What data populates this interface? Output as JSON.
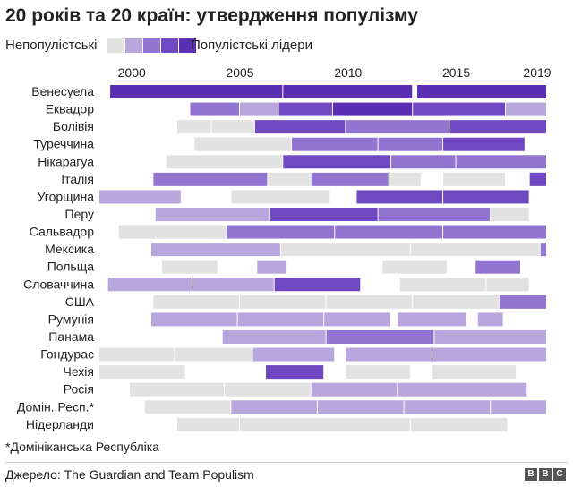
{
  "title": "20 років та 20 країн: утвердження популізму",
  "legend": {
    "left_label": "Непопулістські",
    "right_label": "Популістські лідери",
    "swatches": [
      "#e2e2e2",
      "#b9a6dc",
      "#9175d0",
      "#6f48c2",
      "#5a2fb4"
    ]
  },
  "footnote": "*Домініканська Республіка",
  "source": "Джерело: The Guardian and Team Populism",
  "logo": {
    "letters": [
      "B",
      "B",
      "C"
    ]
  },
  "chart_data": {
    "type": "timeline",
    "x_ticks": [
      2000,
      2005,
      2010,
      2015,
      2019
    ],
    "x_range": [
      1998.5,
      2019.2
    ],
    "levels": {
      "0": "#e2e2e2",
      "1": "#b9a6dc",
      "2": "#9175d0",
      "3": "#6f48c2",
      "4": "#5a2fb4"
    },
    "countries": [
      {
        "name": "Венесуела",
        "segments": [
          [
            1999.0,
            2007.0,
            4
          ],
          [
            2007.0,
            2013.0,
            4
          ],
          [
            2013.2,
            2019.2,
            4
          ]
        ]
      },
      {
        "name": "Еквадор",
        "segments": [
          [
            2002.7,
            2005.0,
            2
          ],
          [
            2005.0,
            2006.8,
            1
          ],
          [
            2006.8,
            2009.3,
            3
          ],
          [
            2009.3,
            2013.0,
            4
          ],
          [
            2013.0,
            2017.3,
            3
          ],
          [
            2017.3,
            2019.2,
            1
          ]
        ]
      },
      {
        "name": "Болівія",
        "segments": [
          [
            2002.1,
            2003.7,
            0
          ],
          [
            2003.7,
            2005.7,
            0
          ],
          [
            2005.7,
            2009.9,
            3
          ],
          [
            2009.9,
            2014.7,
            2
          ],
          [
            2014.7,
            2019.2,
            3
          ]
        ]
      },
      {
        "name": "Туреччина",
        "segments": [
          [
            2002.9,
            2007.4,
            0
          ],
          [
            2007.4,
            2011.4,
            2
          ],
          [
            2011.4,
            2014.4,
            2
          ],
          [
            2014.4,
            2018.2,
            3
          ]
        ]
      },
      {
        "name": "Нікарагуа",
        "segments": [
          [
            2001.6,
            2007.0,
            0
          ],
          [
            2007.0,
            2012.0,
            3
          ],
          [
            2012.0,
            2015.0,
            2
          ],
          [
            2015.0,
            2019.2,
            2
          ]
        ]
      },
      {
        "name": "Італія",
        "segments": [
          [
            2001.0,
            2006.3,
            2
          ],
          [
            2006.3,
            2008.3,
            0
          ],
          [
            2008.3,
            2011.9,
            2
          ],
          [
            2011.9,
            2013.4,
            0
          ],
          [
            2013.4,
            2013.4,
            0
          ],
          [
            2014.4,
            2017.3,
            0
          ],
          [
            2018.4,
            2019.2,
            3
          ]
        ]
      },
      {
        "name": "Угорщина",
        "segments": [
          [
            1998.5,
            2002.3,
            1
          ],
          [
            2004.6,
            2009.2,
            0
          ],
          [
            2010.4,
            2014.4,
            3
          ],
          [
            2014.4,
            2018.4,
            3
          ]
        ]
      },
      {
        "name": "Перу",
        "segments": [
          [
            2001.1,
            2006.4,
            1
          ],
          [
            2006.4,
            2011.4,
            3
          ],
          [
            2011.4,
            2016.6,
            2
          ],
          [
            2016.6,
            2018.4,
            0
          ]
        ]
      },
      {
        "name": "Сальвадор",
        "segments": [
          [
            1999.4,
            2004.4,
            0
          ],
          [
            2004.4,
            2009.4,
            2
          ],
          [
            2009.4,
            2014.4,
            2
          ],
          [
            2014.4,
            2019.2,
            2
          ]
        ]
      },
      {
        "name": "Мексика",
        "segments": [
          [
            2000.9,
            2006.9,
            1
          ],
          [
            2006.9,
            2012.9,
            0
          ],
          [
            2012.9,
            2018.9,
            0
          ],
          [
            2018.9,
            2019.2,
            2
          ]
        ]
      },
      {
        "name": "Польща",
        "segments": [
          [
            2001.4,
            2004.0,
            0
          ],
          [
            2005.8,
            2007.2,
            1
          ],
          [
            2011.6,
            2014.6,
            0
          ],
          [
            2015.9,
            2018.0,
            2
          ]
        ]
      },
      {
        "name": "Словаччина",
        "segments": [
          [
            1998.9,
            2002.8,
            1
          ],
          [
            2002.8,
            2006.6,
            1
          ],
          [
            2006.6,
            2010.6,
            3
          ],
          [
            2012.4,
            2016.4,
            0
          ],
          [
            2016.4,
            2018.4,
            0
          ]
        ]
      },
      {
        "name": "США",
        "segments": [
          [
            2001.0,
            2005.0,
            0
          ],
          [
            2005.0,
            2009.0,
            0
          ],
          [
            2009.0,
            2013.0,
            0
          ],
          [
            2013.0,
            2017.0,
            0
          ],
          [
            2017.0,
            2019.2,
            2
          ]
        ]
      },
      {
        "name": "Румунія",
        "segments": [
          [
            2000.9,
            2004.9,
            1
          ],
          [
            2004.9,
            2008.9,
            1
          ],
          [
            2008.9,
            2012.0,
            1
          ],
          [
            2012.3,
            2015.5,
            1
          ],
          [
            2016.0,
            2017.2,
            1
          ]
        ]
      },
      {
        "name": "Панама",
        "segments": [
          [
            2004.2,
            2009.0,
            1
          ],
          [
            2009.0,
            2014.0,
            2
          ],
          [
            2014.0,
            2019.2,
            1
          ]
        ]
      },
      {
        "name": "Гондурас",
        "segments": [
          [
            1998.5,
            2002.0,
            0
          ],
          [
            2002.0,
            2005.6,
            0
          ],
          [
            2005.6,
            2009.4,
            1
          ],
          [
            2009.9,
            2013.9,
            1
          ],
          [
            2013.9,
            2019.2,
            1
          ]
        ]
      },
      {
        "name": "Чехія",
        "segments": [
          [
            1998.5,
            2002.5,
            0
          ],
          [
            2006.2,
            2008.9,
            3
          ],
          [
            2009.9,
            2012.9,
            0
          ],
          [
            2013.9,
            2017.8,
            0
          ]
        ]
      },
      {
        "name": "Росія",
        "segments": [
          [
            1999.9,
            2004.3,
            0
          ],
          [
            2004.3,
            2008.3,
            0
          ],
          [
            2008.3,
            2012.3,
            1
          ],
          [
            2012.3,
            2018.3,
            1
          ]
        ]
      },
      {
        "name": "Домін. Респ.*",
        "segments": [
          [
            2000.6,
            2004.6,
            0
          ],
          [
            2004.6,
            2008.6,
            1
          ],
          [
            2008.6,
            2012.6,
            1
          ],
          [
            2012.6,
            2016.6,
            1
          ],
          [
            2016.6,
            2019.2,
            1
          ]
        ]
      },
      {
        "name": "Нідерланди",
        "segments": [
          [
            2002.1,
            2005.0,
            0
          ],
          [
            2005.0,
            2012.9,
            0
          ],
          [
            2012.9,
            2017.4,
            0
          ]
        ]
      }
    ]
  }
}
